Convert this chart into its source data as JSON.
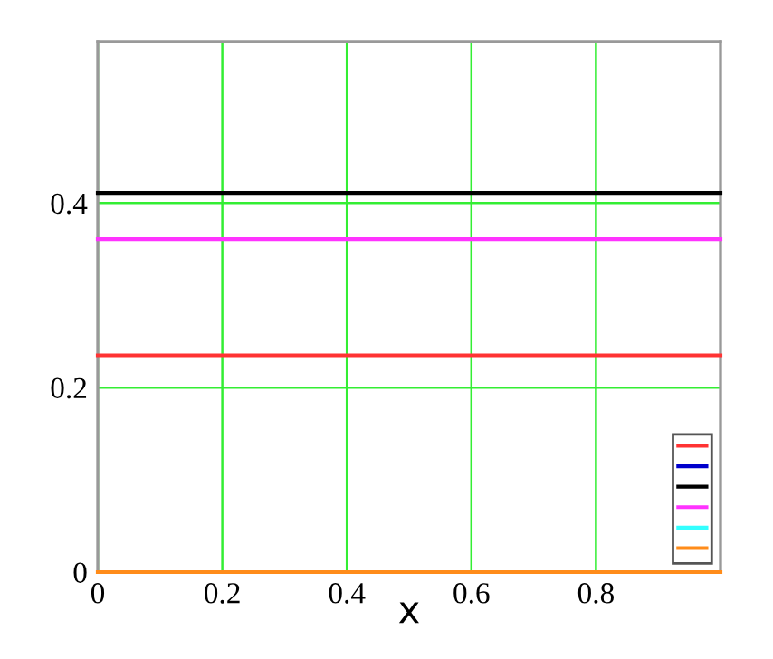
{
  "chart_data": {
    "type": "line",
    "xlabel": "x",
    "x": [
      0,
      1
    ],
    "series": [
      {
        "color": "#ff3333",
        "values": [
          0.235,
          0.235
        ]
      },
      {
        "color": "#0000cc",
        "values": [
          null,
          null
        ]
      },
      {
        "color": "#000000",
        "values": [
          0.411,
          0.411
        ]
      },
      {
        "color": "#ff33ff",
        "values": [
          0.361,
          0.361
        ]
      },
      {
        "color": "#33ffff",
        "values": [
          null,
          null
        ]
      },
      {
        "color": "#ff8c1a",
        "values": [
          0,
          0
        ]
      }
    ],
    "xlim": [
      0,
      1
    ],
    "ylim": [
      0,
      0.575
    ],
    "xticks": [
      0,
      0.2,
      0.4,
      0.6,
      0.8
    ],
    "yticks": [
      0,
      0.2,
      0.4
    ],
    "grid": true,
    "line_style": "solid",
    "marker": "none"
  }
}
